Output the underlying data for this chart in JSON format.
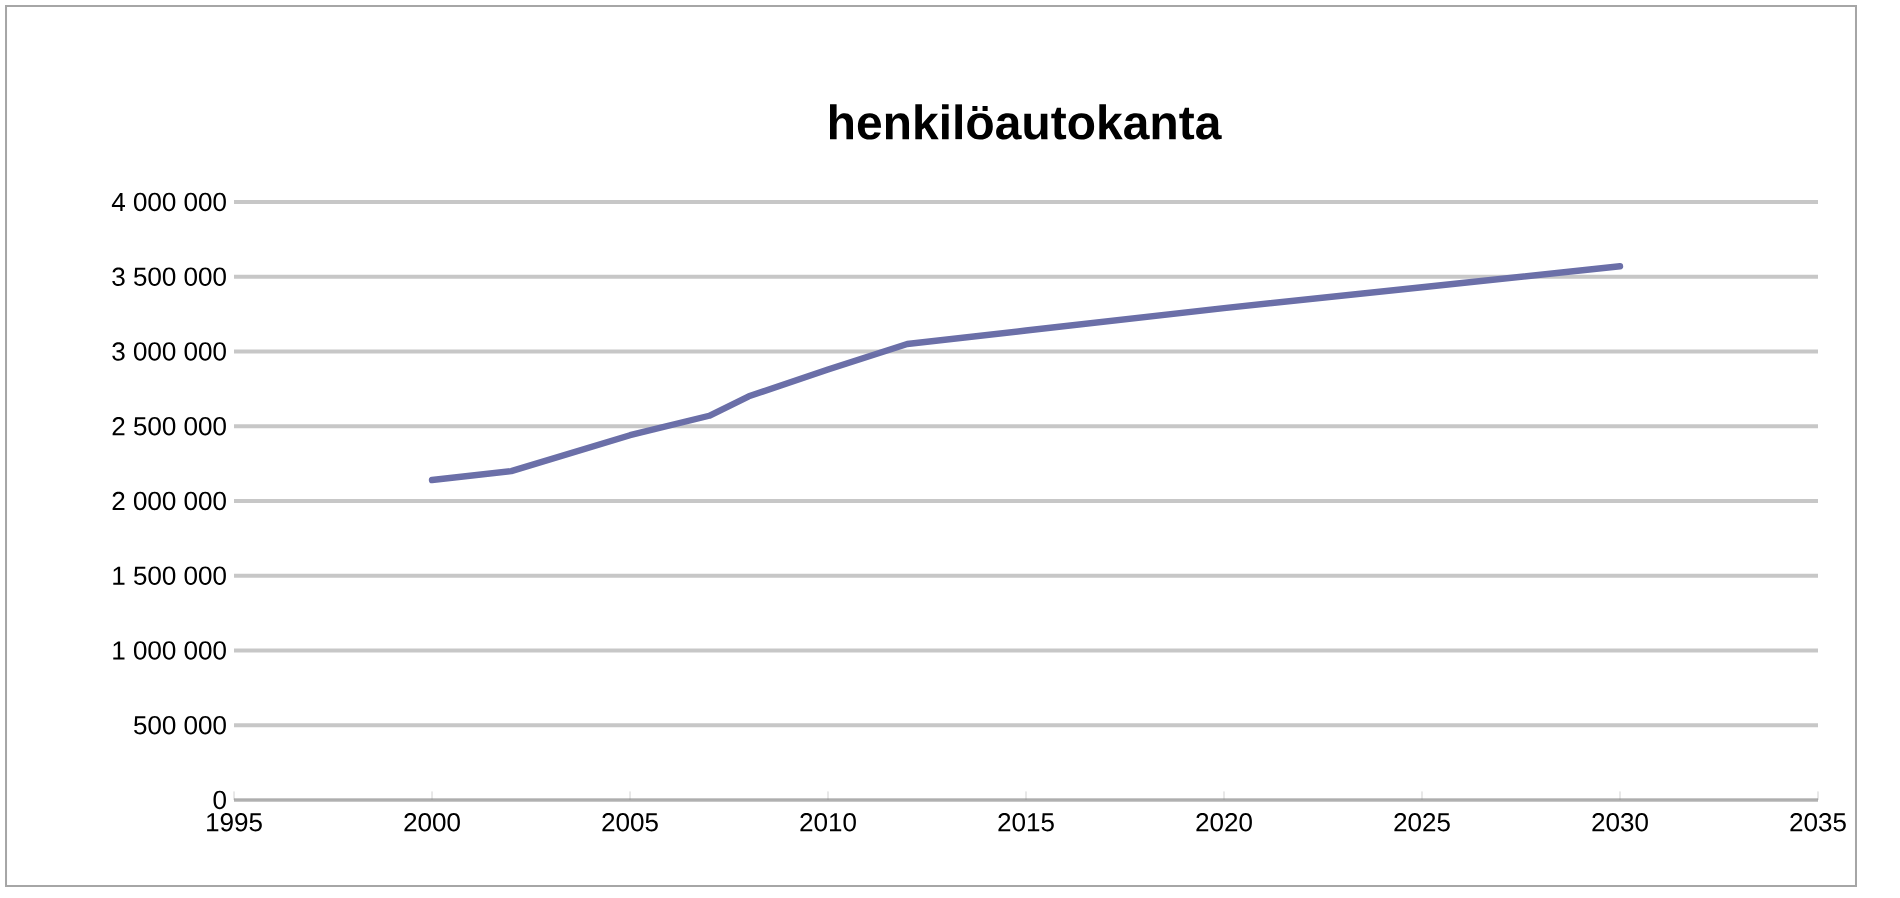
{
  "chart_data": {
    "type": "line",
    "title": "henkilöautokanta",
    "x": [
      2000,
      2002,
      2004,
      2005,
      2007,
      2008,
      2010,
      2012,
      2015,
      2020,
      2025,
      2030
    ],
    "series": [
      {
        "color": "#6b6fa8",
        "values": [
          2140000,
          2200000,
          2360000,
          2440000,
          2570000,
          2700000,
          2880000,
          3050000,
          3140000,
          3290000,
          3430000,
          3570000
        ]
      }
    ],
    "xlim": [
      1995,
      2035
    ],
    "xticks": [
      1995,
      2000,
      2005,
      2010,
      2015,
      2020,
      2025,
      2030,
      2035
    ],
    "ylim": [
      0,
      4000000
    ],
    "yticks": [
      {
        "value": 0,
        "label": "0"
      },
      {
        "value": 500000,
        "label": "500 000"
      },
      {
        "value": 1000000,
        "label": "1 000 000"
      },
      {
        "value": 1500000,
        "label": "1 500 000"
      },
      {
        "value": 2000000,
        "label": "2 000 000"
      },
      {
        "value": 2500000,
        "label": "2 500 000"
      },
      {
        "value": 3000000,
        "label": "3 000 000"
      },
      {
        "value": 3500000,
        "label": "3 500 000"
      },
      {
        "value": 4000000,
        "label": "4 000 000"
      }
    ],
    "grid": "y",
    "marker": "none",
    "line_style": "solid"
  }
}
